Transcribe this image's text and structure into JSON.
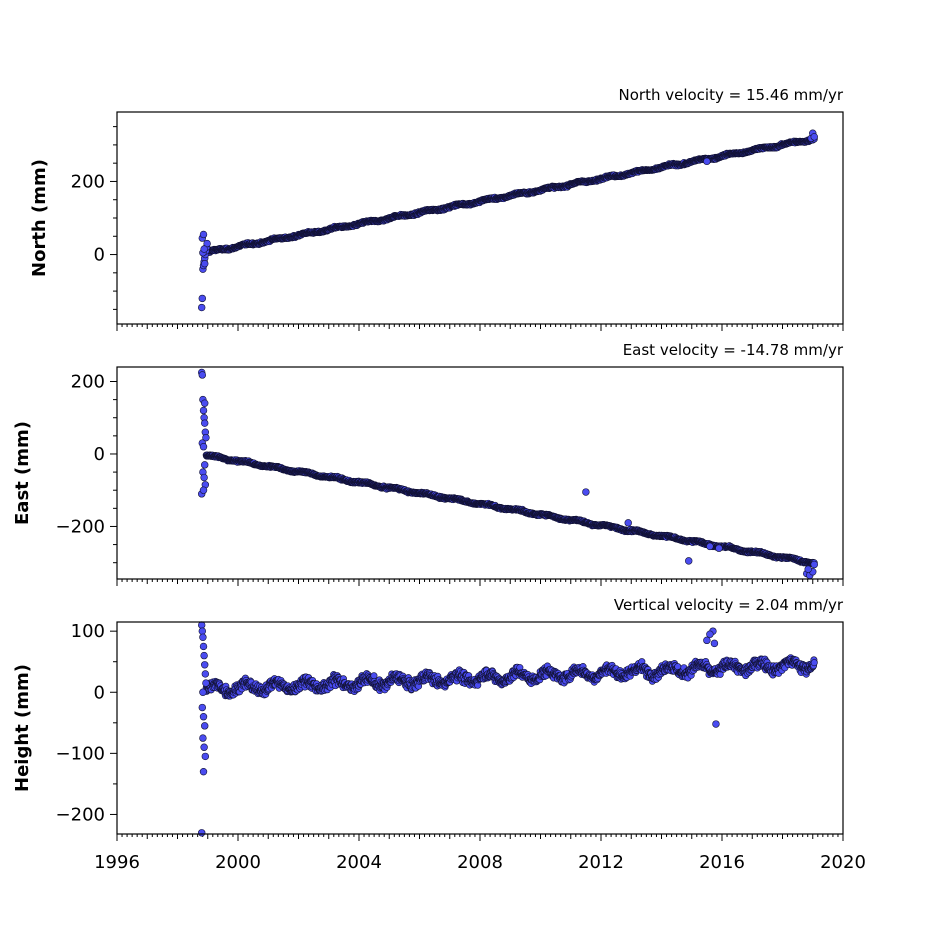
{
  "chart_data": [
    {
      "type": "scatter",
      "title": "North velocity = 15.46 mm/yr",
      "ylabel": "North (mm)",
      "xlim": [
        1996,
        2020
      ],
      "ylim": [
        -190,
        390
      ],
      "yticks": [
        0,
        200
      ],
      "color": "#4a4cf0",
      "model": {
        "t0": 1998.9,
        "y0": 5,
        "rate": 15.46,
        "noise": 3.5,
        "amp": 2.5
      },
      "series": [
        {
          "x": [
            1998.8,
            1998.82,
            1998.84,
            1998.86,
            1998.88,
            1998.9,
            1998.92,
            1998.94,
            1998.96,
            1998.98,
            1998.82,
            1998.86,
            1998.9,
            1998.84,
            1998.88
          ],
          "y": [
            -145,
            -120,
            -40,
            -30,
            -20,
            -10,
            0,
            10,
            20,
            30,
            45,
            55,
            -25,
            5,
            15
          ]
        },
        {
          "x": [
            2015.5,
            2018.95,
            2019.0,
            2019.05
          ],
          "y": [
            255,
            318,
            332,
            322
          ]
        }
      ]
    },
    {
      "type": "scatter",
      "title": "East velocity = -14.78 mm/yr",
      "ylabel": "East (mm)",
      "xlim": [
        1996,
        2020
      ],
      "ylim": [
        -345,
        240
      ],
      "yticks": [
        -200,
        0,
        200
      ],
      "color": "#4a4cf0",
      "model": {
        "t0": 1998.9,
        "y0": -3,
        "rate": -14.78,
        "noise": 3.5,
        "amp": 2.5
      },
      "series": [
        {
          "x": [
            1998.8,
            1998.82,
            1998.84,
            1998.86,
            1998.88,
            1998.9,
            1998.92,
            1998.94,
            1998.82,
            1998.86,
            1998.9,
            1998.84,
            1998.88,
            1998.92,
            1998.8,
            1998.86,
            1998.9
          ],
          "y": [
            225,
            218,
            150,
            120,
            100,
            85,
            60,
            45,
            30,
            20,
            -30,
            -50,
            -65,
            -85,
            -110,
            -100,
            140
          ]
        },
        {
          "x": [
            2011.5,
            2012.9,
            2014.9,
            2015.6,
            2015.9,
            2018.8,
            2018.9,
            2019.0,
            2019.05,
            2018.85
          ],
          "y": [
            -105,
            -190,
            -295,
            -255,
            -260,
            -330,
            -335,
            -325,
            -305,
            -318
          ]
        }
      ]
    },
    {
      "type": "scatter",
      "title": "Vertical velocity = 2.04 mm/yr",
      "ylabel": "Height (mm)",
      "xlim": [
        1996,
        2020
      ],
      "ylim": [
        -232,
        115
      ],
      "yticks": [
        -200,
        -100,
        0,
        100
      ],
      "color": "#4a4cf0",
      "model": {
        "t0": 1998.9,
        "y0": 5,
        "rate": 2.04,
        "noise": 10,
        "amp": 7
      },
      "series": [
        {
          "x": [
            1998.8,
            1998.82,
            1998.84,
            1998.86,
            1998.88,
            1998.9,
            1998.92,
            1998.94,
            1998.82,
            1998.86,
            1998.9,
            1998.84,
            1998.88,
            1998.92,
            1998.86,
            1998.8,
            1998.84
          ],
          "y": [
            110,
            100,
            90,
            75,
            60,
            45,
            30,
            15,
            -25,
            -40,
            -55,
            -75,
            -90,
            -105,
            -130,
            -230,
            0
          ]
        },
        {
          "x": [
            2015.8,
            2015.7,
            2015.6,
            2015.5,
            2015.75
          ],
          "y": [
            -52,
            100,
            95,
            85,
            80
          ]
        }
      ]
    }
  ],
  "xaxis": {
    "tick_labels": [
      "1996",
      "2000",
      "2004",
      "2008",
      "2012",
      "2016",
      "2020"
    ],
    "tick_values": [
      1996,
      2000,
      2004,
      2008,
      2012,
      2016,
      2020
    ]
  }
}
